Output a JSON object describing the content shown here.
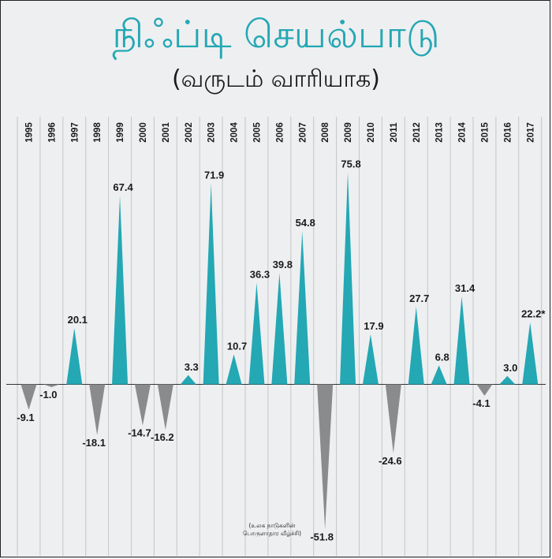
{
  "header": {
    "title": "நிஃப்டி செயல்பாடு",
    "subtitle": "(வருடம் வாரியாக)"
  },
  "note": "(உலக நாடுகளின் பொருளாதார வீழ்ச்சி)",
  "colors": {
    "positive": "#23a8b4",
    "negative": "#8a8b8d",
    "title": "#23a8b4"
  },
  "chart_data": {
    "type": "bar",
    "title": "நிஃப்டி செயல்பாடு",
    "subtitle": "(வருடம் வாரியாக)",
    "xlabel": "",
    "ylabel": "",
    "grid": "vertical",
    "categories": [
      "1995",
      "1996",
      "1997",
      "1998",
      "1999",
      "2000",
      "2001",
      "2002",
      "2003",
      "2004",
      "2005",
      "2006",
      "2007",
      "2008",
      "2009",
      "2010",
      "2011",
      "2012",
      "2013",
      "2014",
      "2015",
      "2016",
      "2017"
    ],
    "values": [
      -9.1,
      -1.0,
      20.1,
      -18.1,
      67.4,
      -14.7,
      -16.2,
      3.3,
      71.9,
      10.7,
      36.3,
      39.8,
      54.8,
      -51.8,
      75.8,
      17.9,
      -24.6,
      27.7,
      6.8,
      31.4,
      -4.1,
      3.0,
      22.2
    ],
    "labels": [
      "-9.1",
      "-1.0",
      "20.1",
      "-18.1",
      "67.4",
      "-14.7",
      "-16.2",
      "3.3",
      "71.9",
      "10.7",
      "36.3",
      "39.8",
      "54.8",
      "-51.8",
      "75.8",
      "17.9",
      "-24.6",
      "27.7",
      "6.8",
      "31.4",
      "-4.1",
      "3.0",
      "22.2*"
    ],
    "ylim": [
      -51.8,
      75.8
    ]
  }
}
